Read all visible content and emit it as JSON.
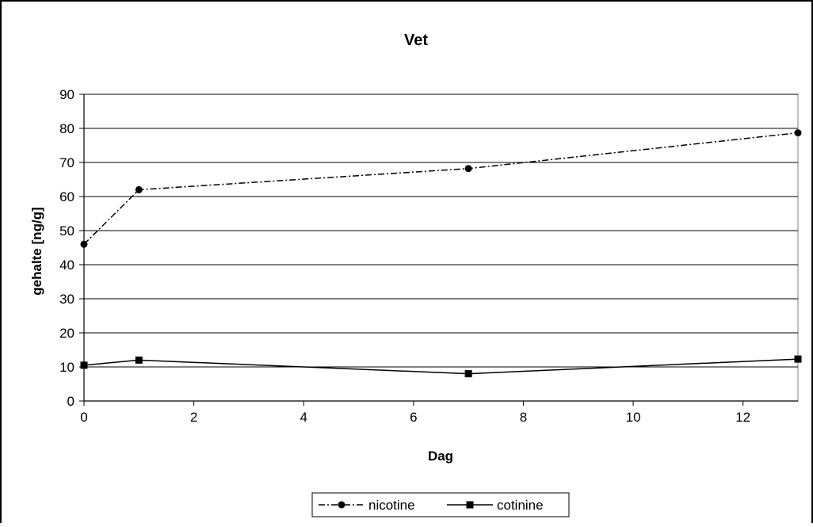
{
  "chart_data": {
    "type": "line",
    "title": "Vet",
    "xlabel": "Dag",
    "ylabel": "gehalte [ng/g]",
    "xlim": [
      0,
      13
    ],
    "ylim": [
      0,
      90
    ],
    "xticks": [
      0,
      2,
      4,
      6,
      8,
      10,
      12
    ],
    "yticks": [
      0,
      10,
      20,
      30,
      40,
      50,
      60,
      70,
      80,
      90
    ],
    "grid": "horizontal",
    "legend_position": "bottom",
    "series": [
      {
        "name": "nicotine",
        "line_style": "dash-dot",
        "marker": "circle",
        "x": [
          0,
          1,
          7,
          13
        ],
        "y": [
          46,
          62,
          68.2,
          78.7
        ]
      },
      {
        "name": "cotinine",
        "line_style": "solid",
        "marker": "square",
        "x": [
          0,
          1,
          7,
          13
        ],
        "y": [
          10.5,
          12,
          8,
          12.3
        ]
      }
    ]
  }
}
